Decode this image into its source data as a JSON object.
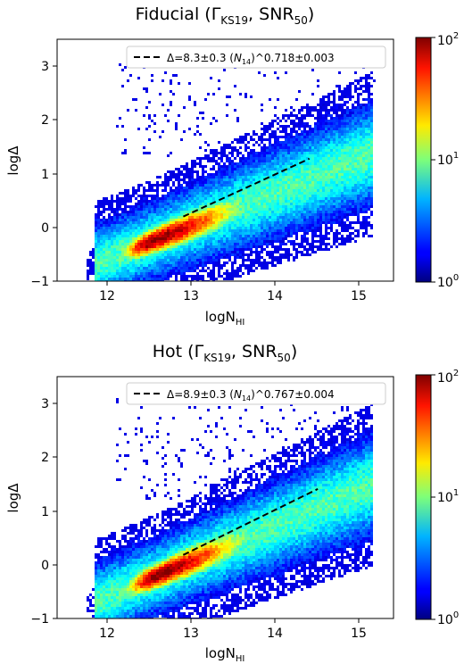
{
  "chart_data": [
    {
      "type": "heatmap",
      "title": "Fiducial",
      "title_params": [
        "Γ",
        "KS19",
        "SNR",
        "50"
      ],
      "xlabel": {
        "main": "logN",
        "sub": "HI"
      },
      "ylabel": "logΔ",
      "xlim": [
        11.5,
        15.5
      ],
      "ylim": [
        -1,
        3.5
      ],
      "xticks": [
        "12",
        "13",
        "14",
        "15"
      ],
      "yticks": [
        "−1",
        "0",
        "1",
        "2",
        "3"
      ],
      "colorbar": {
        "scale": "log",
        "min": 1,
        "max": 100,
        "ticks": [
          {
            "base": "10",
            "exp": "0"
          },
          {
            "base": "10",
            "exp": "1"
          },
          {
            "base": "10",
            "exp": "2"
          }
        ]
      },
      "legend": {
        "placement": "top-right",
        "text_a": "Δ=8.3±0.3 (",
        "text_n": "N",
        "text_n_sub": "14",
        "text_b": ")^0.718±0.003"
      },
      "fit": {
        "A": 8.3,
        "alpha": 0.718,
        "x_range": [
          13.0,
          14.5
        ]
      },
      "density": {
        "peak_x": 12.65,
        "peak_y": -0.25,
        "slope": 0.62
      }
    },
    {
      "type": "heatmap",
      "title": "Hot",
      "title_params": [
        "Γ",
        "KS19",
        "SNR",
        "50"
      ],
      "xlabel": {
        "main": "logN",
        "sub": "HI"
      },
      "ylabel": "logΔ",
      "xlim": [
        11.5,
        15.5
      ],
      "ylim": [
        -1,
        3.5
      ],
      "xticks": [
        "12",
        "13",
        "14",
        "15"
      ],
      "yticks": [
        "−1",
        "0",
        "1",
        "2",
        "3"
      ],
      "colorbar": {
        "scale": "log",
        "min": 1,
        "max": 100,
        "ticks": [
          {
            "base": "10",
            "exp": "0"
          },
          {
            "base": "10",
            "exp": "1"
          },
          {
            "base": "10",
            "exp": "2"
          }
        ]
      },
      "legend": {
        "placement": "top-right",
        "text_a": "Δ=8.9±0.3 (",
        "text_n": "N",
        "text_n_sub": "14",
        "text_b": ")^0.767±0.004"
      },
      "fit": {
        "A": 8.9,
        "alpha": 0.767,
        "x_range": [
          13.0,
          14.6
        ]
      },
      "density": {
        "peak_x": 12.7,
        "peak_y": -0.2,
        "slope": 0.66
      }
    }
  ]
}
